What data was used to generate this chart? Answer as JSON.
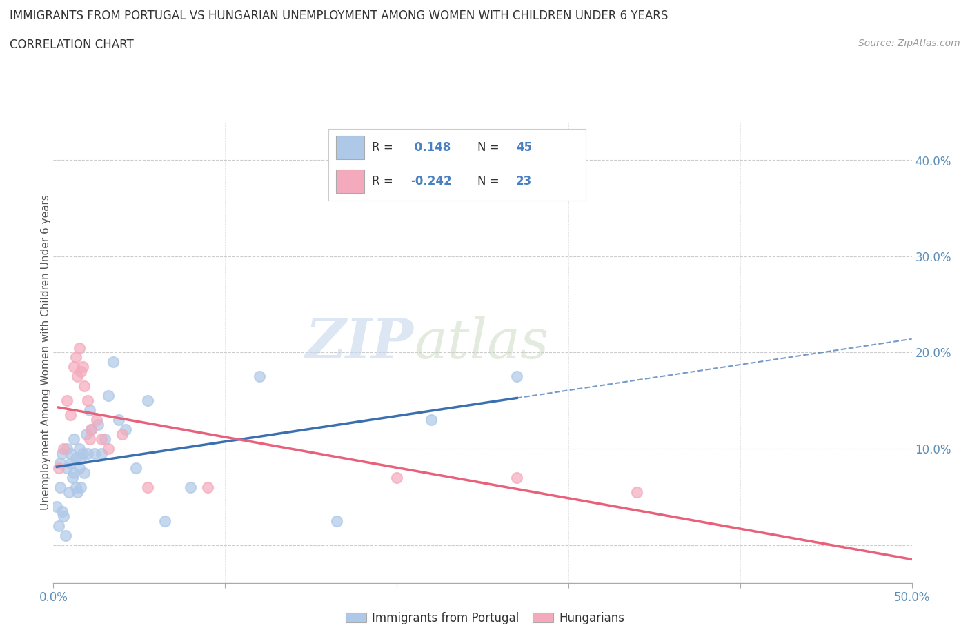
{
  "title_line1": "IMMIGRANTS FROM PORTUGAL VS HUNGARIAN UNEMPLOYMENT AMONG WOMEN WITH CHILDREN UNDER 6 YEARS",
  "title_line2": "CORRELATION CHART",
  "source_text": "Source: ZipAtlas.com",
  "ylabel": "Unemployment Among Women with Children Under 6 years",
  "xlim": [
    0.0,
    0.5
  ],
  "ylim": [
    -0.04,
    0.44
  ],
  "xticks": [
    0.0,
    0.1,
    0.2,
    0.3,
    0.4,
    0.5
  ],
  "xticklabels": [
    "0.0%",
    "",
    "",
    "",
    "",
    "50.0%"
  ],
  "yticks": [
    0.0,
    0.1,
    0.2,
    0.3,
    0.4
  ],
  "yticklabels_right": [
    "",
    "10.0%",
    "20.0%",
    "30.0%",
    "40.0%"
  ],
  "blue_R": 0.148,
  "blue_N": 45,
  "pink_R": -0.242,
  "pink_N": 23,
  "blue_color": "#aec8e8",
  "pink_color": "#f4aabc",
  "blue_line_color": "#3a70b0",
  "pink_line_color": "#e8607a",
  "watermark_zip": "ZIP",
  "watermark_atlas": "atlas",
  "legend_label_blue": "Immigrants from Portugal",
  "legend_label_pink": "Hungarians",
  "blue_scatter_x": [
    0.002,
    0.003,
    0.004,
    0.004,
    0.005,
    0.005,
    0.006,
    0.007,
    0.008,
    0.008,
    0.009,
    0.01,
    0.01,
    0.011,
    0.012,
    0.012,
    0.013,
    0.013,
    0.014,
    0.015,
    0.015,
    0.016,
    0.016,
    0.017,
    0.018,
    0.019,
    0.02,
    0.021,
    0.022,
    0.024,
    0.026,
    0.028,
    0.03,
    0.032,
    0.035,
    0.038,
    0.042,
    0.048,
    0.055,
    0.065,
    0.08,
    0.12,
    0.165,
    0.22,
    0.27
  ],
  "blue_scatter_y": [
    0.04,
    0.02,
    0.085,
    0.06,
    0.095,
    0.035,
    0.03,
    0.01,
    0.1,
    0.08,
    0.055,
    0.095,
    0.085,
    0.07,
    0.11,
    0.075,
    0.06,
    0.09,
    0.055,
    0.08,
    0.1,
    0.06,
    0.09,
    0.095,
    0.075,
    0.115,
    0.095,
    0.14,
    0.12,
    0.095,
    0.125,
    0.095,
    0.11,
    0.155,
    0.19,
    0.13,
    0.12,
    0.08,
    0.15,
    0.025,
    0.06,
    0.175,
    0.025,
    0.13,
    0.175
  ],
  "pink_scatter_x": [
    0.003,
    0.006,
    0.008,
    0.01,
    0.012,
    0.013,
    0.014,
    0.015,
    0.016,
    0.017,
    0.018,
    0.02,
    0.021,
    0.022,
    0.025,
    0.028,
    0.032,
    0.04,
    0.055,
    0.09,
    0.2,
    0.27,
    0.34
  ],
  "pink_scatter_y": [
    0.08,
    0.1,
    0.15,
    0.135,
    0.185,
    0.195,
    0.175,
    0.205,
    0.18,
    0.185,
    0.165,
    0.15,
    0.11,
    0.12,
    0.13,
    0.11,
    0.1,
    0.115,
    0.06,
    0.06,
    0.07,
    0.07,
    0.055
  ]
}
